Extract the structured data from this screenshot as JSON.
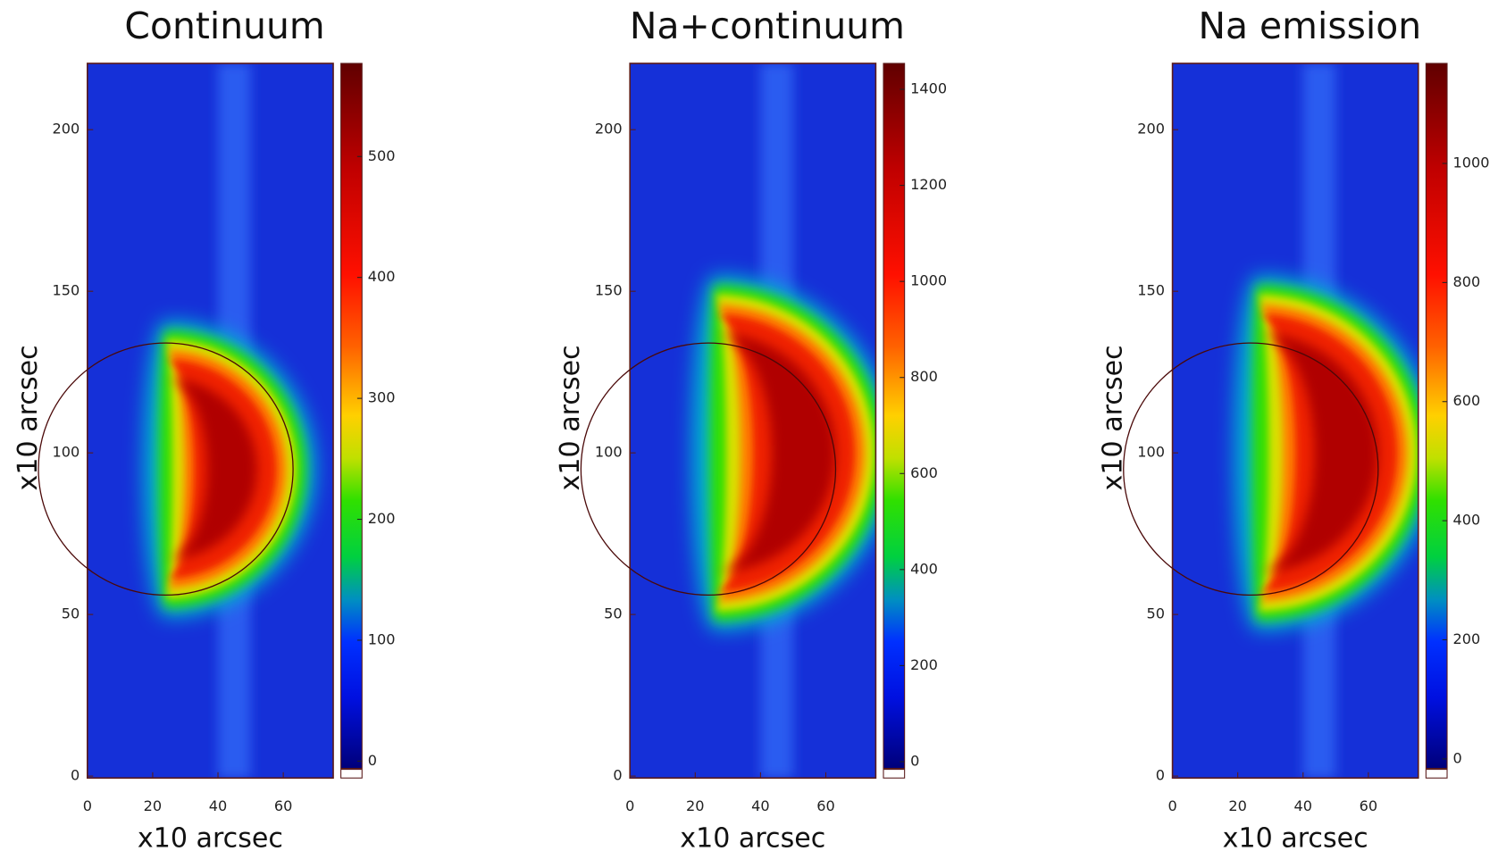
{
  "chart_data": [
    {
      "type": "heatmap",
      "title": "Continuum",
      "xlabel": "x10 arcsec",
      "ylabel": "x10 arcsec",
      "xlim": [
        0,
        75
      ],
      "ylim": [
        0,
        220
      ],
      "xticks": [
        0,
        20,
        40,
        60
      ],
      "yticks": [
        0,
        50,
        100,
        150,
        200
      ],
      "colorbar": {
        "lim": [
          -6,
          577
        ],
        "ticks": [
          0,
          100,
          200,
          300,
          400,
          500
        ]
      },
      "circle": {
        "cx": 24,
        "cy": 95,
        "r": 39
      }
    },
    {
      "type": "heatmap",
      "title": "Na+continuum",
      "xlabel": "x10 arcsec",
      "ylabel": "x10 arcsec",
      "xlim": [
        0,
        75
      ],
      "ylim": [
        0,
        220
      ],
      "xticks": [
        0,
        20,
        40,
        60
      ],
      "yticks": [
        0,
        50,
        100,
        150,
        200
      ],
      "colorbar": {
        "lim": [
          -14,
          1454
        ],
        "ticks": [
          0,
          200,
          400,
          600,
          800,
          1000,
          1200,
          1400
        ]
      },
      "circle": {
        "cx": 24,
        "cy": 95,
        "r": 39
      }
    },
    {
      "type": "heatmap",
      "title": "Na emission",
      "xlabel": "x10 arcsec",
      "ylabel": "x10 arcsec",
      "xlim": [
        0,
        75
      ],
      "ylim": [
        0,
        220
      ],
      "xticks": [
        0,
        20,
        40,
        60
      ],
      "yticks": [
        0,
        50,
        100,
        150,
        200
      ],
      "colorbar": {
        "lim": [
          -16,
          1168
        ],
        "ticks": [
          0,
          200,
          400,
          600,
          800,
          1000
        ]
      },
      "circle": {
        "cx": 24,
        "cy": 95,
        "r": 39
      }
    }
  ]
}
